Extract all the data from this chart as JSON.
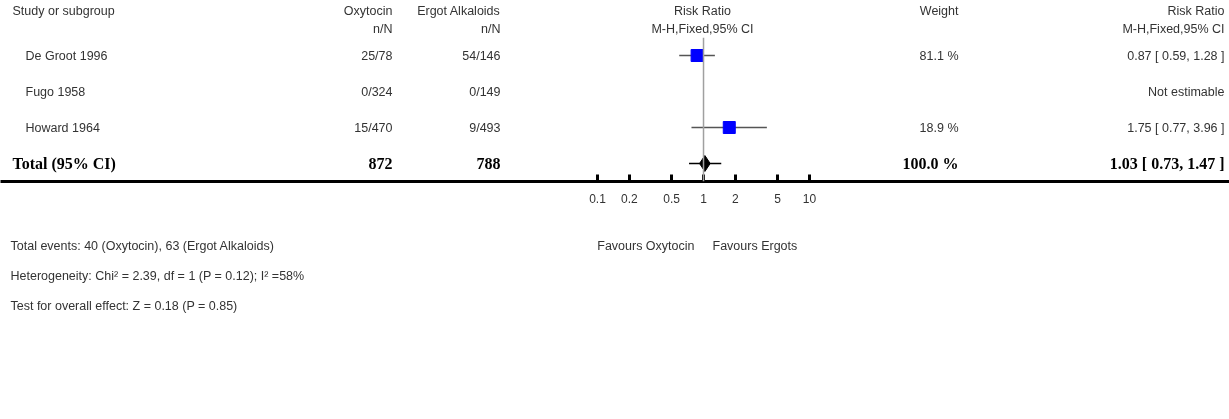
{
  "chart_data": {
    "type": "scatter",
    "orientation": "horizontal",
    "categories": [
      "De Groot 1996",
      "Fugo 1958",
      "Howard 1964",
      "Total (95% CI)"
    ],
    "series": [
      {
        "marker": "square",
        "color": "#0000ff",
        "values": [
          0.87,
          null,
          1.75,
          null
        ],
        "errors": [
          [
            0.59,
            1.28
          ],
          null,
          [
            0.77,
            3.96
          ],
          null
        ]
      },
      {
        "marker": "diamond",
        "color": "#000000",
        "values": [
          null,
          null,
          null,
          1.03
        ],
        "errors": [
          null,
          null,
          null,
          [
            0.73,
            1.47
          ]
        ]
      }
    ],
    "log": "x",
    "xlim": [
      2.33e-07,
      91700
    ],
    "xticks": [
      0.1,
      0.2,
      0.5,
      1,
      2,
      5,
      10
    ],
    "grid": false,
    "ref_lines": [
      {
        "axis": "x",
        "value": 1,
        "color": "#a0a0a0"
      }
    ],
    "annotations": [
      "Study or subgroup",
      "Oxytocin",
      "Ergot Alkaloids",
      "Risk Ratio",
      "Weight",
      "Risk Ratio",
      "n/N",
      "n/N",
      "M-H,Fixed,95% CI",
      "M-H,Fixed,95% CI",
      "25/78",
      "54/146",
      "81.1 %",
      "0.87 [ 0.59, 1.28 ]",
      "0/324",
      "0/149",
      "Not estimable",
      "15/470",
      "9/493",
      "18.9 %",
      "1.75 [ 0.77, 3.96 ]",
      "872",
      "788",
      "100.0 %",
      "1.03 [ 0.73, 1.47 ]",
      "Total events: 40 (Oxytocin), 63 (Ergot Alkaloids)",
      "Heterogeneity: Chi² = 2.39, df = 1 (P = 0.12); I² =58%",
      "Test for overall effect: Z = 0.18 (P = 0.85)",
      "Favours Oxytocin",
      "Favours Ergots"
    ]
  }
}
